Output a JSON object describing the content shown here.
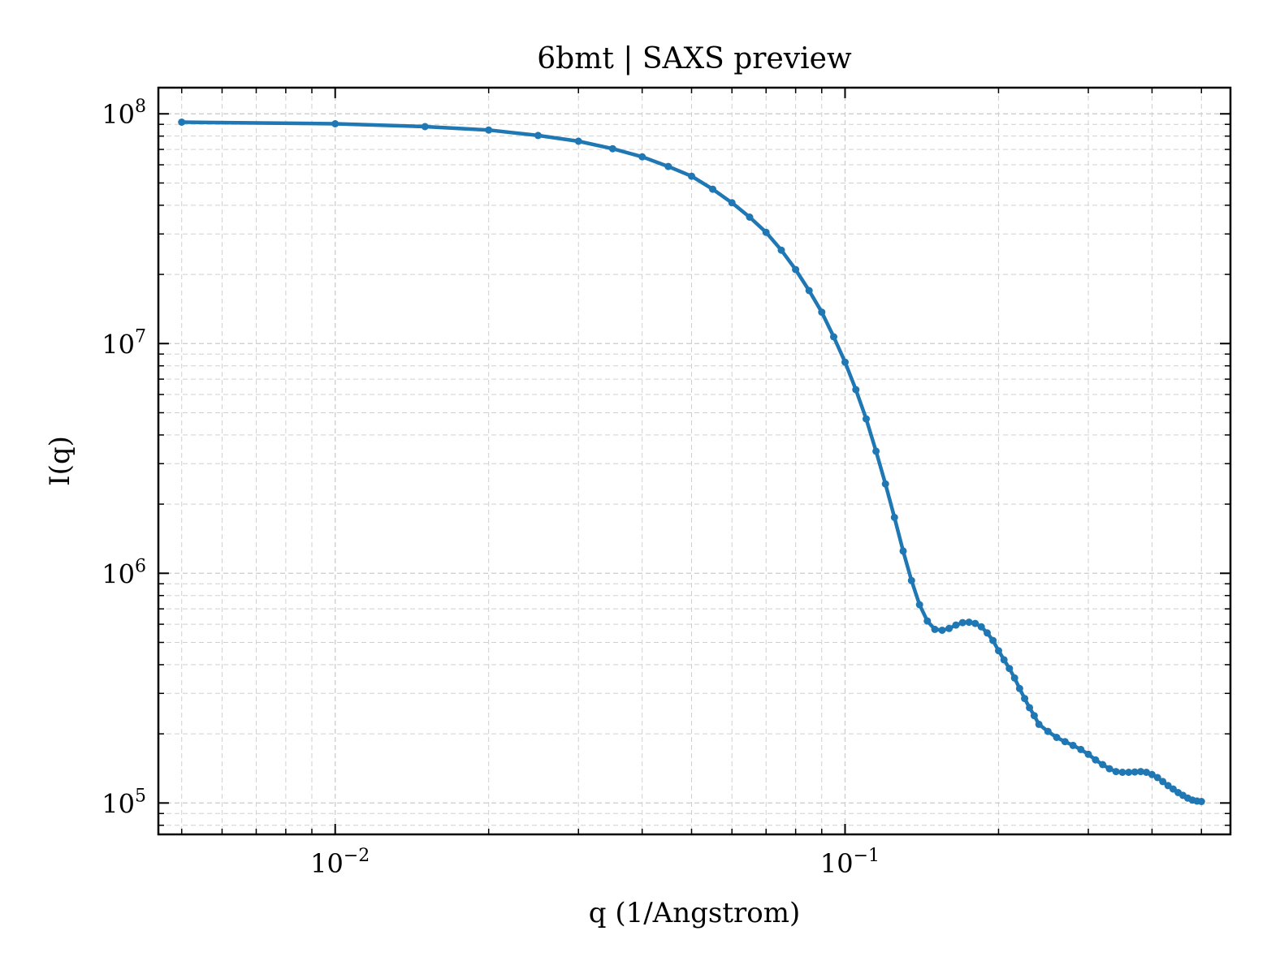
{
  "chart_data": {
    "type": "line",
    "title": "6bmt | SAXS preview",
    "xlabel": "q (1/Angstrom)",
    "ylabel": "I(q)",
    "xscale": "log",
    "yscale": "log",
    "xlim": [
      0.0045,
      0.57
    ],
    "ylim": [
      73000,
      130000000
    ],
    "grid": true,
    "legend": "none",
    "series_color": "#1f77b4",
    "x_ticks": [
      {
        "value": 0.01,
        "base": "10",
        "exp": "−2"
      },
      {
        "value": 0.1,
        "base": "10",
        "exp": "−1"
      }
    ],
    "y_ticks": [
      {
        "value": 100000,
        "base": "10",
        "exp": "5"
      },
      {
        "value": 1000000,
        "base": "10",
        "exp": "6"
      },
      {
        "value": 10000000,
        "base": "10",
        "exp": "7"
      },
      {
        "value": 100000000,
        "base": "10",
        "exp": "8"
      }
    ],
    "series": [
      {
        "x": [
          0.005,
          0.01,
          0.015,
          0.02,
          0.025,
          0.03,
          0.035,
          0.04,
          0.045,
          0.05,
          0.055,
          0.06,
          0.065,
          0.07,
          0.075,
          0.08,
          0.085,
          0.09,
          0.095,
          0.1,
          0.105,
          0.11,
          0.115,
          0.12,
          0.125,
          0.13,
          0.135,
          0.14,
          0.145,
          0.15,
          0.155,
          0.16,
          0.165,
          0.17,
          0.175,
          0.18,
          0.185,
          0.19,
          0.195,
          0.2,
          0.205,
          0.21,
          0.215,
          0.22,
          0.225,
          0.23,
          0.235,
          0.24,
          0.25,
          0.26,
          0.27,
          0.28,
          0.29,
          0.3,
          0.31,
          0.32,
          0.33,
          0.34,
          0.35,
          0.36,
          0.37,
          0.38,
          0.39,
          0.4,
          0.41,
          0.42,
          0.43,
          0.44,
          0.45,
          0.46,
          0.47,
          0.48,
          0.49,
          0.5
        ],
        "y": [
          92000000,
          90500000,
          88000000,
          85000000,
          80500000,
          76000000,
          70500000,
          65000000,
          59000000,
          53500000,
          47000000,
          41000000,
          35500000,
          30500000,
          25500000,
          21000000,
          17000000,
          13700000,
          10700000,
          8300000,
          6300000,
          4700000,
          3400000,
          2450000,
          1750000,
          1250000,
          930000,
          730000,
          620000,
          570000,
          565000,
          575000,
          595000,
          610000,
          612000,
          605000,
          585000,
          550000,
          510000,
          460000,
          420000,
          385000,
          350000,
          315000,
          285000,
          260000,
          240000,
          220000,
          205000,
          193000,
          185000,
          178000,
          171000,
          163000,
          154000,
          147000,
          141000,
          137000,
          136000,
          136000,
          136500,
          137000,
          136000,
          133000,
          129000,
          124000,
          119000,
          115000,
          111000,
          108000,
          105000,
          103000,
          102000,
          101500
        ]
      }
    ]
  }
}
